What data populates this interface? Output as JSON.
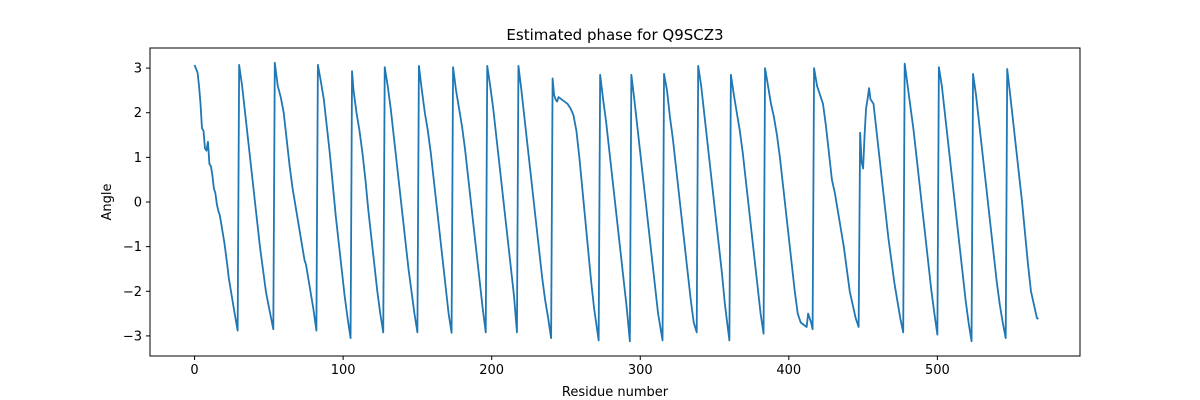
{
  "chart_data": {
    "type": "line",
    "title": "Estimated phase for Q9SCZ3",
    "xlabel": "Residue number",
    "ylabel": "Angle",
    "xlim": [
      -30,
      596
    ],
    "ylim": [
      -3.45,
      3.45
    ],
    "xticks": [
      0,
      100,
      200,
      300,
      400,
      500
    ],
    "yticks": [
      -3,
      -2,
      -1,
      0,
      1,
      2,
      3
    ],
    "grid": false,
    "series": [
      {
        "color": "#1f77b4",
        "points": [
          [
            0,
            3.07
          ],
          [
            2,
            2.9
          ],
          [
            3,
            2.6
          ],
          [
            4,
            2.2
          ],
          [
            5,
            1.65
          ],
          [
            6,
            1.6
          ],
          [
            7,
            1.2
          ],
          [
            8,
            1.15
          ],
          [
            9,
            1.35
          ],
          [
            10,
            0.85
          ],
          [
            11,
            0.8
          ],
          [
            12,
            0.6
          ],
          [
            13,
            0.3
          ],
          [
            14,
            0.2
          ],
          [
            15,
            -0.05
          ],
          [
            16,
            -0.2
          ],
          [
            17,
            -0.3
          ],
          [
            19,
            -0.7
          ],
          [
            20,
            -0.9
          ],
          [
            22,
            -1.4
          ],
          [
            23,
            -1.7
          ],
          [
            25,
            -2.1
          ],
          [
            27,
            -2.5
          ],
          [
            29,
            -2.88
          ],
          [
            30,
            3.07
          ],
          [
            32,
            2.6
          ],
          [
            34,
            2.0
          ],
          [
            36,
            1.4
          ],
          [
            38,
            0.8
          ],
          [
            40,
            0.2
          ],
          [
            42,
            -0.4
          ],
          [
            44,
            -1.0
          ],
          [
            46,
            -1.5
          ],
          [
            48,
            -2.0
          ],
          [
            50,
            -2.35
          ],
          [
            53,
            -2.85
          ],
          [
            54,
            3.12
          ],
          [
            56,
            2.6
          ],
          [
            58,
            2.35
          ],
          [
            60,
            2.0
          ],
          [
            62,
            1.4
          ],
          [
            64,
            0.8
          ],
          [
            66,
            0.3
          ],
          [
            68,
            -0.1
          ],
          [
            70,
            -0.5
          ],
          [
            72,
            -0.9
          ],
          [
            74,
            -1.3
          ],
          [
            75,
            -1.4
          ],
          [
            77,
            -1.8
          ],
          [
            80,
            -2.4
          ],
          [
            82,
            -2.88
          ],
          [
            83,
            3.07
          ],
          [
            85,
            2.7
          ],
          [
            87,
            2.3
          ],
          [
            89,
            1.7
          ],
          [
            91,
            1.1
          ],
          [
            93,
            0.4
          ],
          [
            95,
            -0.3
          ],
          [
            97,
            -0.9
          ],
          [
            99,
            -1.5
          ],
          [
            101,
            -2.1
          ],
          [
            103,
            -2.6
          ],
          [
            105,
            -3.05
          ],
          [
            106,
            2.93
          ],
          [
            107,
            2.5
          ],
          [
            109,
            2.0
          ],
          [
            111,
            1.6
          ],
          [
            113,
            1.1
          ],
          [
            115,
            0.5
          ],
          [
            117,
            -0.2
          ],
          [
            119,
            -0.8
          ],
          [
            121,
            -1.4
          ],
          [
            123,
            -2.0
          ],
          [
            125,
            -2.5
          ],
          [
            127,
            -2.92
          ],
          [
            128,
            3.02
          ],
          [
            130,
            2.6
          ],
          [
            132,
            2.1
          ],
          [
            134,
            1.5
          ],
          [
            136,
            0.9
          ],
          [
            138,
            0.3
          ],
          [
            140,
            -0.3
          ],
          [
            142,
            -0.9
          ],
          [
            144,
            -1.5
          ],
          [
            146,
            -2.0
          ],
          [
            148,
            -2.5
          ],
          [
            150,
            -2.92
          ],
          [
            151,
            3.05
          ],
          [
            153,
            2.5
          ],
          [
            155,
            2.0
          ],
          [
            157,
            1.6
          ],
          [
            159,
            1.1
          ],
          [
            161,
            0.5
          ],
          [
            163,
            -0.1
          ],
          [
            165,
            -0.7
          ],
          [
            167,
            -1.3
          ],
          [
            169,
            -1.9
          ],
          [
            171,
            -2.5
          ],
          [
            173,
            -2.93
          ],
          [
            174,
            3.02
          ],
          [
            176,
            2.5
          ],
          [
            178,
            2.1
          ],
          [
            180,
            1.7
          ],
          [
            182,
            1.2
          ],
          [
            184,
            0.6
          ],
          [
            186,
            0.0
          ],
          [
            188,
            -0.6
          ],
          [
            190,
            -1.2
          ],
          [
            192,
            -1.8
          ],
          [
            194,
            -2.4
          ],
          [
            196,
            -2.92
          ],
          [
            197,
            3.05
          ],
          [
            199,
            2.6
          ],
          [
            201,
            2.1
          ],
          [
            203,
            1.5
          ],
          [
            205,
            0.9
          ],
          [
            207,
            0.3
          ],
          [
            209,
            -0.3
          ],
          [
            211,
            -0.9
          ],
          [
            213,
            -1.5
          ],
          [
            215,
            -2.1
          ],
          [
            217,
            -2.92
          ],
          [
            218,
            3.05
          ],
          [
            220,
            2.5
          ],
          [
            222,
            1.9
          ],
          [
            224,
            1.3
          ],
          [
            226,
            0.7
          ],
          [
            228,
            0.1
          ],
          [
            230,
            -0.5
          ],
          [
            232,
            -1.1
          ],
          [
            234,
            -1.7
          ],
          [
            236,
            -2.2
          ],
          [
            238,
            -2.6
          ],
          [
            240,
            -3.05
          ],
          [
            241,
            2.77
          ],
          [
            242,
            2.4
          ],
          [
            243,
            2.3
          ],
          [
            244,
            2.25
          ],
          [
            245,
            2.35
          ],
          [
            247,
            2.3
          ],
          [
            249,
            2.25
          ],
          [
            251,
            2.2
          ],
          [
            253,
            2.1
          ],
          [
            255,
            1.95
          ],
          [
            257,
            1.6
          ],
          [
            259,
            1.0
          ],
          [
            261,
            0.3
          ],
          [
            263,
            -0.4
          ],
          [
            265,
            -1.1
          ],
          [
            267,
            -1.8
          ],
          [
            269,
            -2.4
          ],
          [
            272,
            -3.1
          ],
          [
            273,
            2.85
          ],
          [
            275,
            2.3
          ],
          [
            277,
            1.8
          ],
          [
            279,
            1.2
          ],
          [
            281,
            0.6
          ],
          [
            283,
            0.0
          ],
          [
            285,
            -0.6
          ],
          [
            287,
            -1.2
          ],
          [
            289,
            -1.8
          ],
          [
            291,
            -2.4
          ],
          [
            293,
            -3.12
          ],
          [
            294,
            2.85
          ],
          [
            296,
            2.3
          ],
          [
            298,
            1.7
          ],
          [
            300,
            1.1
          ],
          [
            302,
            0.5
          ],
          [
            304,
            -0.1
          ],
          [
            306,
            -0.7
          ],
          [
            308,
            -1.3
          ],
          [
            310,
            -1.9
          ],
          [
            312,
            -2.5
          ],
          [
            315,
            -3.1
          ],
          [
            316,
            2.87
          ],
          [
            318,
            2.5
          ],
          [
            320,
            1.9
          ],
          [
            322,
            1.4
          ],
          [
            324,
            0.8
          ],
          [
            326,
            0.2
          ],
          [
            328,
            -0.4
          ],
          [
            330,
            -1.0
          ],
          [
            332,
            -1.6
          ],
          [
            334,
            -2.2
          ],
          [
            336,
            -2.7
          ],
          [
            338,
            -2.92
          ],
          [
            339,
            3.05
          ],
          [
            341,
            2.6
          ],
          [
            343,
            2.0
          ],
          [
            345,
            1.4
          ],
          [
            347,
            0.8
          ],
          [
            349,
            0.2
          ],
          [
            351,
            -0.4
          ],
          [
            353,
            -1.0
          ],
          [
            355,
            -1.6
          ],
          [
            357,
            -2.3
          ],
          [
            360,
            -3.1
          ],
          [
            361,
            2.85
          ],
          [
            363,
            2.4
          ],
          [
            365,
            2.0
          ],
          [
            367,
            1.6
          ],
          [
            369,
            1.1
          ],
          [
            371,
            0.5
          ],
          [
            373,
            -0.1
          ],
          [
            375,
            -0.7
          ],
          [
            377,
            -1.3
          ],
          [
            379,
            -1.9
          ],
          [
            381,
            -2.5
          ],
          [
            383,
            -2.95
          ],
          [
            384,
            3.0
          ],
          [
            386,
            2.6
          ],
          [
            388,
            2.2
          ],
          [
            390,
            1.9
          ],
          [
            392,
            1.5
          ],
          [
            394,
            1.0
          ],
          [
            396,
            0.4
          ],
          [
            398,
            -0.2
          ],
          [
            400,
            -0.8
          ],
          [
            402,
            -1.4
          ],
          [
            404,
            -2.0
          ],
          [
            406,
            -2.5
          ],
          [
            408,
            -2.7
          ],
          [
            410,
            -2.75
          ],
          [
            412,
            -2.8
          ],
          [
            413,
            -2.5
          ],
          [
            415,
            -2.7
          ],
          [
            416,
            -2.85
          ],
          [
            417,
            3.0
          ],
          [
            419,
            2.6
          ],
          [
            421,
            2.4
          ],
          [
            423,
            2.2
          ],
          [
            425,
            1.7
          ],
          [
            427,
            1.1
          ],
          [
            429,
            0.5
          ],
          [
            431,
            0.2
          ],
          [
            433,
            -0.2
          ],
          [
            435,
            -0.6
          ],
          [
            437,
            -1.0
          ],
          [
            439,
            -1.5
          ],
          [
            441,
            -2.0
          ],
          [
            443,
            -2.3
          ],
          [
            445,
            -2.6
          ],
          [
            447,
            -2.8
          ],
          [
            448,
            1.55
          ],
          [
            449,
            0.9
          ],
          [
            450,
            0.75
          ],
          [
            451,
            1.5
          ],
          [
            452,
            2.1
          ],
          [
            453,
            2.3
          ],
          [
            454,
            2.55
          ],
          [
            455,
            2.3
          ],
          [
            457,
            2.2
          ],
          [
            459,
            1.6
          ],
          [
            461,
            1.0
          ],
          [
            463,
            0.4
          ],
          [
            465,
            -0.2
          ],
          [
            467,
            -0.8
          ],
          [
            469,
            -1.3
          ],
          [
            471,
            -1.8
          ],
          [
            473,
            -2.2
          ],
          [
            475,
            -2.6
          ],
          [
            477,
            -2.92
          ],
          [
            478,
            3.1
          ],
          [
            480,
            2.6
          ],
          [
            482,
            2.1
          ],
          [
            484,
            1.6
          ],
          [
            486,
            1.0
          ],
          [
            488,
            0.4
          ],
          [
            490,
            -0.2
          ],
          [
            492,
            -0.8
          ],
          [
            494,
            -1.4
          ],
          [
            496,
            -2.0
          ],
          [
            498,
            -2.5
          ],
          [
            500,
            -2.97
          ],
          [
            501,
            3.02
          ],
          [
            503,
            2.6
          ],
          [
            505,
            2.0
          ],
          [
            507,
            1.4
          ],
          [
            509,
            0.8
          ],
          [
            511,
            0.2
          ],
          [
            513,
            -0.4
          ],
          [
            515,
            -1.0
          ],
          [
            517,
            -1.6
          ],
          [
            519,
            -2.2
          ],
          [
            521,
            -2.7
          ],
          [
            523,
            -3.12
          ],
          [
            524,
            2.87
          ],
          [
            526,
            2.4
          ],
          [
            528,
            1.8
          ],
          [
            530,
            1.2
          ],
          [
            532,
            0.6
          ],
          [
            534,
            0.0
          ],
          [
            536,
            -0.6
          ],
          [
            538,
            -1.2
          ],
          [
            540,
            -1.8
          ],
          [
            542,
            -2.3
          ],
          [
            544,
            -2.7
          ],
          [
            546,
            -3.05
          ],
          [
            547,
            2.98
          ],
          [
            549,
            2.4
          ],
          [
            551,
            1.8
          ],
          [
            553,
            1.2
          ],
          [
            555,
            0.6
          ],
          [
            557,
            0.0
          ],
          [
            559,
            -0.7
          ],
          [
            561,
            -1.4
          ],
          [
            563,
            -2.0
          ],
          [
            565,
            -2.3
          ],
          [
            567,
            -2.6
          ],
          [
            568,
            -2.62
          ]
        ]
      }
    ]
  }
}
